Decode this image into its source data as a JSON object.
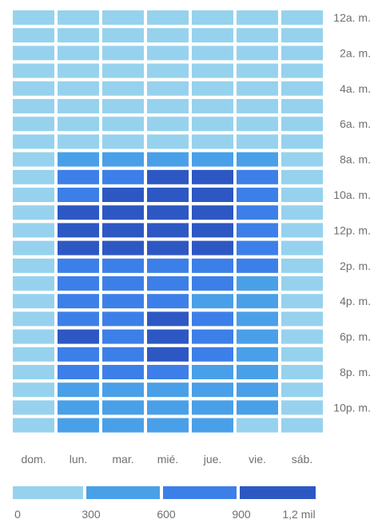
{
  "chart_data": {
    "type": "heatmap",
    "days": [
      "dom.",
      "lun.",
      "mar.",
      "mié.",
      "jue.",
      "vie.",
      "sáb."
    ],
    "hour_labels": [
      "12a. m.",
      "",
      "2a. m.",
      "",
      "4a. m.",
      "",
      "6a. m.",
      "",
      "8a. m.",
      "",
      "10a. m.",
      "",
      "12p. m.",
      "",
      "2p. m.",
      "",
      "4p. m.",
      "",
      "6p. m.",
      "",
      "8p. m.",
      "",
      "10p. m.",
      ""
    ],
    "values": [
      [
        40,
        50,
        50,
        50,
        50,
        50,
        40
      ],
      [
        30,
        40,
        40,
        40,
        40,
        40,
        30
      ],
      [
        30,
        30,
        30,
        30,
        30,
        30,
        30
      ],
      [
        20,
        30,
        30,
        30,
        30,
        30,
        20
      ],
      [
        20,
        30,
        30,
        30,
        30,
        30,
        20
      ],
      [
        20,
        50,
        50,
        50,
        50,
        50,
        30
      ],
      [
        30,
        150,
        150,
        150,
        150,
        150,
        50
      ],
      [
        50,
        280,
        280,
        280,
        280,
        260,
        80
      ],
      [
        80,
        480,
        450,
        480,
        580,
        450,
        120
      ],
      [
        100,
        780,
        760,
        1000,
        1000,
        730,
        150
      ],
      [
        130,
        850,
        1000,
        1050,
        1050,
        780,
        160
      ],
      [
        150,
        1100,
        1100,
        1100,
        1100,
        850,
        180
      ],
      [
        160,
        1150,
        1100,
        1100,
        1150,
        850,
        190
      ],
      [
        170,
        1100,
        1050,
        1050,
        1050,
        800,
        190
      ],
      [
        170,
        880,
        700,
        700,
        760,
        600,
        180
      ],
      [
        170,
        830,
        600,
        720,
        760,
        560,
        180
      ],
      [
        170,
        760,
        600,
        760,
        580,
        520,
        170
      ],
      [
        170,
        760,
        730,
        1000,
        600,
        520,
        160
      ],
      [
        170,
        1100,
        650,
        1020,
        620,
        450,
        160
      ],
      [
        170,
        620,
        620,
        980,
        620,
        450,
        150
      ],
      [
        160,
        600,
        600,
        620,
        580,
        430,
        140
      ],
      [
        150,
        500,
        520,
        480,
        480,
        400,
        140
      ],
      [
        140,
        480,
        480,
        420,
        420,
        300,
        130
      ],
      [
        110,
        450,
        450,
        420,
        450,
        220,
        120
      ]
    ],
    "legend": {
      "ticks": [
        "0",
        "300",
        "600",
        "900",
        "1,2 mil"
      ],
      "colors": [
        "#96d2ee",
        "#4aa0e8",
        "#3d7fe8",
        "#2d58c4"
      ]
    }
  }
}
